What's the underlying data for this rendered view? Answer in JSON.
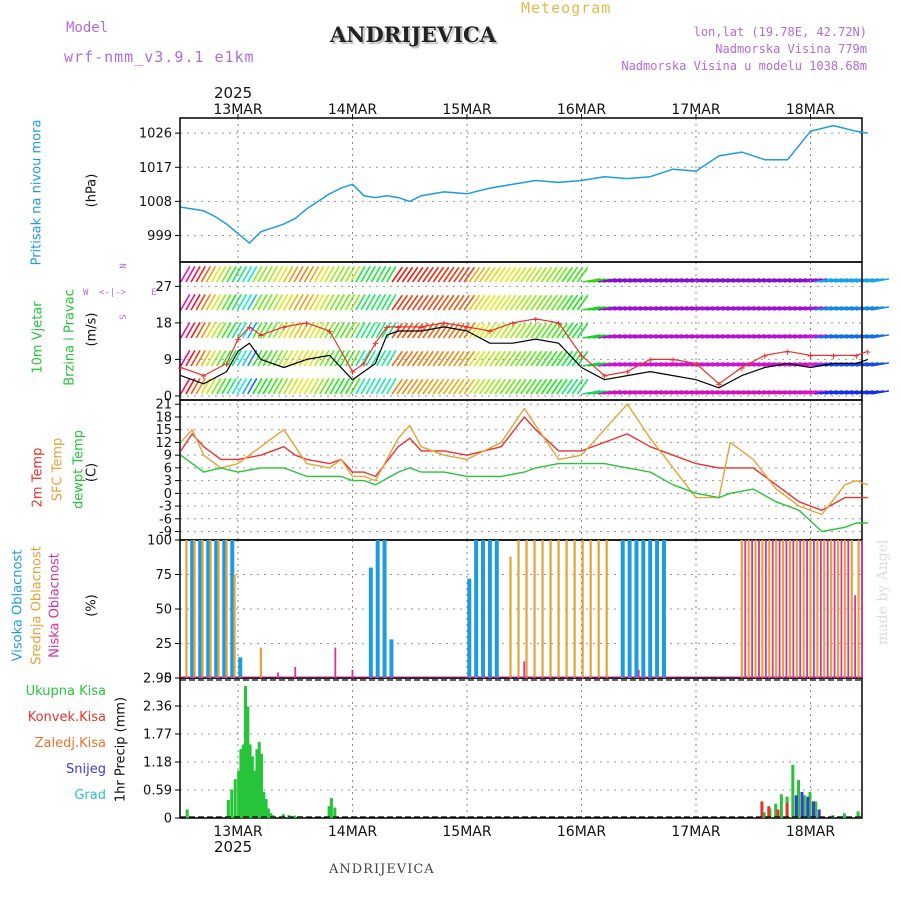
{
  "header": {
    "title": "ANDRIJEVICA",
    "subtitle": "Meteogram",
    "model_label": "Model",
    "model_name": "wrf-nmm_v3.9.1 e1km",
    "lonlat": "lon,lat (19.78E, 42.72N)",
    "elevation": "Nadmorska Visina 779m",
    "model_elevation": "Nadmorska Visina u modelu 1038.68m",
    "footer": "ANDRIJEVICA",
    "credit": "made by Angel"
  },
  "colors": {
    "pressure": "#1e9be0",
    "temp2m": "#e8332e",
    "sfc_temp": "#e5a23a",
    "dewpoint": "#27c43a",
    "wind_speed": "#000000",
    "gust": "#e8332e",
    "high_cloud": "#1e9be0",
    "mid_cloud": "#e5a23a",
    "low_cloud": "#d6339b",
    "total_precip": "#27c43a",
    "conv_precip": "#e8332e",
    "snow": "#3c3cd0",
    "purple_text": "#b56ad8",
    "gold_text": "#e8b84a"
  },
  "time_axis": {
    "year": "2025",
    "day_labels": [
      "13MAR",
      "14MAR",
      "15MAR",
      "16MAR",
      "17MAR",
      "18MAR"
    ]
  },
  "panels": {
    "pressure": {
      "label": "Pritisak na nivou mora",
      "unit": "(hPa)"
    },
    "wind": {
      "label1": "10m Vjetar",
      "label2": "Brzina i Pravac",
      "unit": "(m/s)",
      "compass_n": "N",
      "compass_s": "S",
      "compass_w": "W",
      "compass_e": "E"
    },
    "temperature": {
      "label1": "2m Temp",
      "label2": "SFC Temp",
      "label3": "dewpt Temp",
      "unit": "(C)"
    },
    "clouds": {
      "label1": "Visoka Oblacnost",
      "label2": "Srednja Oblacnost",
      "label3": "Niska Oblacnost",
      "unit": "(%)"
    },
    "precip": {
      "legend": [
        "Ukupna Kisa",
        "Konvek.Kisa",
        "Zaledj.Kisa",
        "Snijeg",
        "Grad"
      ],
      "unit": "1hr Precip (mm)"
    }
  },
  "chart_data": [
    {
      "type": "line",
      "name": "pressure",
      "x_unit": "days from 13MAR 00UTC",
      "ylim": [
        992,
        1030
      ],
      "y_ticks": [
        999,
        1008,
        1017,
        1026
      ],
      "x": [
        -0.5,
        -0.3,
        -0.2,
        -0.1,
        0.0,
        0.1,
        0.2,
        0.3,
        0.4,
        0.5,
        0.6,
        0.7,
        0.8,
        0.9,
        1.0,
        1.1,
        1.2,
        1.3,
        1.4,
        1.5,
        1.6,
        1.8,
        2.0,
        2.2,
        2.4,
        2.6,
        2.8,
        3.0,
        3.2,
        3.4,
        3.6,
        3.8,
        4.0,
        4.2,
        4.4,
        4.6,
        4.8,
        5.0,
        5.2,
        5.4,
        5.5
      ],
      "values": [
        1006.5,
        1005.5,
        1004.0,
        1002.0,
        999.5,
        997.0,
        1000.0,
        1001.0,
        1002.0,
        1003.5,
        1006.0,
        1008.0,
        1010.0,
        1011.5,
        1012.5,
        1009.5,
        1009.0,
        1009.5,
        1009.0,
        1008.0,
        1009.5,
        1010.5,
        1010.0,
        1011.5,
        1012.5,
        1013.5,
        1013.0,
        1013.5,
        1014.5,
        1014.0,
        1014.5,
        1016.5,
        1016.0,
        1020.0,
        1021.0,
        1019.0,
        1019.0,
        1026.5,
        1028.0,
        1026.5,
        1026.0
      ]
    },
    {
      "type": "line",
      "name": "wind",
      "x_unit": "days from 13MAR 00UTC",
      "ylim": [
        -1,
        33
      ],
      "y_ticks": [
        0,
        9,
        18,
        27
      ],
      "x": [
        -0.5,
        -0.3,
        -0.1,
        0.0,
        0.1,
        0.2,
        0.4,
        0.6,
        0.8,
        1.0,
        1.1,
        1.2,
        1.3,
        1.4,
        1.6,
        1.8,
        2.0,
        2.2,
        2.4,
        2.6,
        2.8,
        3.0,
        3.2,
        3.4,
        3.6,
        3.8,
        4.0,
        4.2,
        4.4,
        4.6,
        4.8,
        5.0,
        5.2,
        5.4,
        5.5
      ],
      "speed": [
        5,
        3,
        6,
        11,
        13,
        9,
        7,
        9,
        10,
        4,
        6,
        8,
        15,
        16,
        16,
        17,
        16,
        13,
        13,
        14,
        13,
        7,
        4,
        5,
        6,
        5,
        4,
        2,
        5,
        7,
        8,
        7,
        8,
        8,
        9
      ],
      "gust": [
        7,
        5,
        8,
        14,
        17,
        15,
        17,
        18,
        16,
        6,
        8,
        13,
        17,
        17,
        17,
        18,
        17,
        16,
        18,
        19,
        18,
        10,
        5,
        6,
        9,
        9,
        8,
        3,
        7,
        10,
        11,
        10,
        10,
        10,
        11
      ]
    },
    {
      "type": "line",
      "name": "temperature",
      "x_unit": "days from 13MAR 00UTC",
      "ylim": [
        -11,
        22
      ],
      "y_ticks": [
        -9,
        -6,
        -3,
        0,
        3,
        6,
        9,
        12,
        15,
        18,
        21
      ],
      "series": [
        {
          "name": "2m Temp",
          "x": [
            -0.5,
            -0.4,
            -0.3,
            -0.15,
            0.0,
            0.2,
            0.4,
            0.5,
            0.6,
            0.8,
            0.9,
            1.0,
            1.1,
            1.2,
            1.4,
            1.5,
            1.6,
            1.8,
            2.0,
            2.3,
            2.5,
            2.6,
            2.8,
            3.0,
            3.2,
            3.4,
            3.6,
            3.8,
            4.0,
            4.2,
            4.3,
            4.5,
            4.7,
            4.9,
            5.1,
            5.3,
            5.4,
            5.5
          ],
          "values": [
            10,
            14,
            11,
            8,
            8,
            9,
            11,
            9,
            8,
            7,
            8,
            5,
            5,
            4,
            11,
            13,
            10,
            10,
            9,
            11,
            18,
            15,
            10,
            10,
            12,
            14,
            11,
            9,
            7,
            6,
            6,
            6,
            2,
            -2,
            -4,
            -1,
            -1,
            -1
          ]
        },
        {
          "name": "SFC Temp",
          "x": [
            -0.5,
            -0.4,
            -0.3,
            -0.15,
            0.0,
            0.2,
            0.4,
            0.5,
            0.6,
            0.8,
            0.9,
            1.0,
            1.1,
            1.2,
            1.4,
            1.5,
            1.6,
            1.8,
            2.0,
            2.3,
            2.5,
            2.6,
            2.8,
            3.0,
            3.2,
            3.4,
            3.6,
            3.8,
            4.0,
            4.2,
            4.3,
            4.5,
            4.7,
            4.9,
            5.1,
            5.3,
            5.4,
            5.5
          ],
          "values": [
            12,
            15,
            9,
            6,
            7,
            11,
            15,
            11,
            7,
            6,
            8,
            4,
            4,
            3,
            13,
            16,
            11,
            9,
            8,
            12,
            20,
            16,
            8,
            9,
            15,
            21,
            13,
            6,
            -1,
            -1,
            12,
            8,
            1,
            -3,
            -5,
            2,
            3,
            2
          ]
        },
        {
          "name": "dewpt Temp",
          "x": [
            -0.5,
            -0.4,
            -0.3,
            -0.15,
            0.0,
            0.2,
            0.4,
            0.5,
            0.6,
            0.8,
            0.9,
            1.0,
            1.1,
            1.2,
            1.4,
            1.5,
            1.6,
            1.8,
            2.0,
            2.3,
            2.5,
            2.6,
            2.8,
            3.0,
            3.2,
            3.4,
            3.6,
            3.8,
            4.0,
            4.2,
            4.3,
            4.5,
            4.7,
            4.9,
            5.1,
            5.3,
            5.4,
            5.5
          ],
          "values": [
            9,
            7,
            5,
            6,
            5,
            6,
            6,
            5,
            4,
            4,
            4,
            3,
            3,
            2,
            5,
            6,
            5,
            5,
            4,
            4,
            5,
            6,
            7,
            7,
            7,
            6,
            5,
            2,
            0,
            -1,
            0,
            1,
            -2,
            -4,
            -9,
            -8,
            -7,
            -7
          ]
        }
      ]
    },
    {
      "type": "bar",
      "name": "clouds",
      "x_unit": "days from 13MAR 00UTC",
      "ylim": [
        0,
        100
      ],
      "y_ticks": [
        0,
        25,
        50,
        75,
        100
      ],
      "series": [
        {
          "name": "Visoka Oblacnost",
          "x": [
            -0.4,
            -0.33,
            -0.26,
            -0.19,
            -0.12,
            -0.05,
            0.02,
            1.16,
            1.22,
            1.28,
            1.34,
            2.02,
            2.08,
            2.14,
            2.2,
            2.26,
            3.36,
            3.42,
            3.48,
            3.54,
            3.6,
            3.66,
            3.72
          ],
          "values": [
            100,
            100,
            100,
            100,
            100,
            100,
            15,
            80,
            100,
            100,
            28,
            72,
            100,
            100,
            100,
            100,
            100,
            100,
            100,
            100,
            100,
            100,
            100
          ]
        },
        {
          "name": "Srednja Oblacnost",
          "x": [
            -0.45,
            -0.38,
            -0.31,
            -0.24,
            -0.17,
            -0.1,
            -0.03,
            0.2,
            2.38,
            2.45,
            2.52,
            2.59,
            2.66,
            2.73,
            2.8,
            2.87,
            2.94,
            3.01,
            3.08,
            3.15,
            3.22,
            4.4,
            4.46,
            4.52,
            4.58,
            4.64,
            4.7,
            4.76,
            4.82,
            4.88,
            4.94,
            5.0,
            5.06,
            5.12,
            5.18,
            5.24,
            5.3,
            5.36,
            5.42
          ],
          "values": [
            100,
            100,
            100,
            100,
            100,
            100,
            75,
            22,
            88,
            100,
            100,
            100,
            100,
            100,
            100,
            100,
            100,
            100,
            100,
            100,
            100,
            100,
            100,
            100,
            100,
            100,
            100,
            100,
            100,
            100,
            100,
            100,
            100,
            100,
            100,
            100,
            100,
            100,
            100
          ]
        },
        {
          "name": "Niska Oblacnost",
          "x": [
            0.35,
            0.5,
            0.85,
            1.0,
            2.5,
            3.5,
            4.43,
            4.49,
            4.55,
            4.61,
            4.67,
            4.73,
            4.79,
            4.85,
            4.91,
            4.97,
            5.03,
            5.09,
            5.15,
            5.21,
            5.27,
            5.33,
            5.39,
            5.45
          ],
          "values": [
            4,
            8,
            22,
            6,
            12,
            6,
            100,
            100,
            100,
            100,
            100,
            100,
            100,
            100,
            100,
            100,
            100,
            100,
            100,
            100,
            100,
            100,
            60,
            100
          ]
        }
      ]
    },
    {
      "type": "bar",
      "name": "precipitation",
      "x_unit": "days from 13MAR 00UTC",
      "ylim": [
        0,
        2.95
      ],
      "y_ticks": [
        0,
        0.59,
        1.18,
        1.77,
        2.36,
        2.95
      ],
      "series": [
        {
          "name": "Ukupna Kisa",
          "x": [
            -0.44,
            -0.08,
            -0.05,
            -0.02,
            0.01,
            0.03,
            0.05,
            0.07,
            0.09,
            0.11,
            0.13,
            0.15,
            0.17,
            0.19,
            0.21,
            0.23,
            0.25,
            0.27,
            0.29,
            0.31,
            0.4,
            0.45,
            0.5,
            0.55,
            0.8,
            0.82,
            0.85,
            4.6,
            4.65,
            4.7,
            4.75,
            4.8,
            4.85,
            4.9,
            4.95,
            5.0,
            5.05,
            5.2,
            5.3,
            5.42
          ],
          "values": [
            0.18,
            0.38,
            0.6,
            0.82,
            1.0,
            1.45,
            1.55,
            2.78,
            2.35,
            1.55,
            1.3,
            1.0,
            1.45,
            1.6,
            1.35,
            0.55,
            0.4,
            0.2,
            0.1,
            0.06,
            0.08,
            0.06,
            0.05,
            0.04,
            0.25,
            0.42,
            0.22,
            0.12,
            0.2,
            0.3,
            0.5,
            0.45,
            1.12,
            0.8,
            0.48,
            0.55,
            0.35,
            0.06,
            0.1,
            0.14
          ]
        },
        {
          "name": "Konvek.Kisa",
          "x": [
            4.58,
            4.64,
            4.72,
            4.8
          ],
          "values": [
            0.35,
            0.25,
            0.18,
            0.32
          ]
        },
        {
          "name": "Snijeg",
          "x": [
            4.88,
            4.93,
            4.98,
            5.03,
            5.08
          ],
          "values": [
            0.48,
            0.55,
            0.45,
            0.35,
            0.18
          ]
        }
      ]
    }
  ]
}
